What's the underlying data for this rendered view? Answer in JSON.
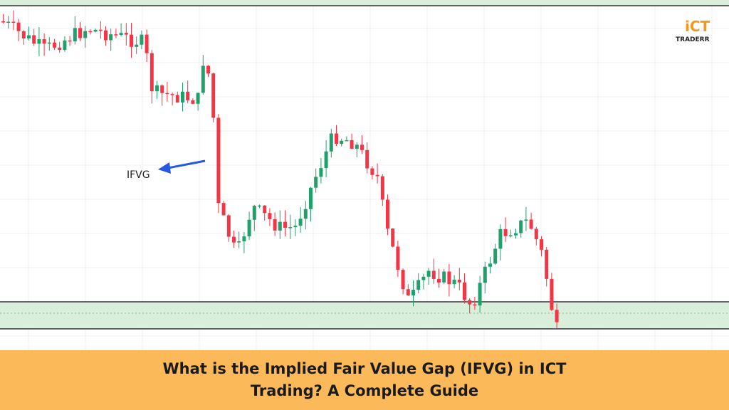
{
  "chart_label": "IFVG",
  "logo": {
    "mark": "iCT",
    "name": "TRADERR"
  },
  "banner": {
    "line1": "What is the Implied Fair Value Gap (IFVG) in ICT",
    "line2": "Trading? A Complete Guide"
  }
}
